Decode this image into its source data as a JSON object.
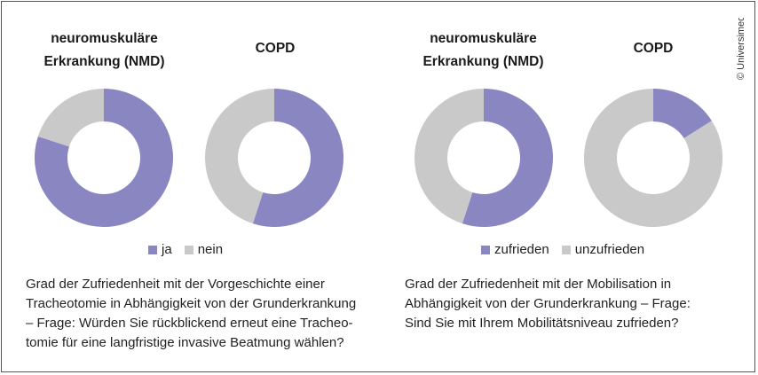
{
  "colors": {
    "primary": "#8a86c1",
    "secondary": "#c9c9c9"
  },
  "copyright": "© Universimed",
  "chart_data": [
    {
      "type": "pie",
      "group": "left",
      "title": "neuromuskuläre Erkrankung (NMD)",
      "title_lines": [
        "neuromuskuläre",
        "Erkrankung (NMD)"
      ],
      "categories": [
        "ja",
        "nein"
      ],
      "values": [
        80,
        20
      ]
    },
    {
      "type": "pie",
      "group": "left",
      "title": "COPD",
      "title_lines": [
        "COPD"
      ],
      "categories": [
        "ja",
        "nein"
      ],
      "values": [
        55,
        45
      ]
    },
    {
      "type": "pie",
      "group": "right",
      "title": "neuromuskuläre Erkrankung (NMD)",
      "title_lines": [
        "neuromuskuläre",
        "Erkrankung (NMD)"
      ],
      "categories": [
        "zufrieden",
        "unzufrieden"
      ],
      "values": [
        55,
        45
      ]
    },
    {
      "type": "pie",
      "group": "right",
      "title": "COPD",
      "title_lines": [
        "COPD"
      ],
      "categories": [
        "zufrieden",
        "unzufrieden"
      ],
      "values": [
        16,
        84
      ]
    }
  ],
  "legend_left": [
    "ja",
    "nein"
  ],
  "legend_right": [
    "zufrieden",
    "unzufrieden"
  ],
  "caption_left": [
    "Grad der Zufriedenheit mit der Vorgeschichte einer",
    "Tracheotomie in Abhängigkeit von der Grunderkrankung",
    "– Frage: Würden Sie rückblickend erneut eine Tracheo-",
    "tomie für eine langfristige invasive Beatmung wählen?"
  ],
  "caption_right": [
    "Grad der Zufriedenheit mit der Mobilisation in",
    "Abhängigkeit von der Grunderkrankung – Frage:",
    "Sind Sie mit Ihrem Mobilitätsniveau zufrieden?"
  ]
}
